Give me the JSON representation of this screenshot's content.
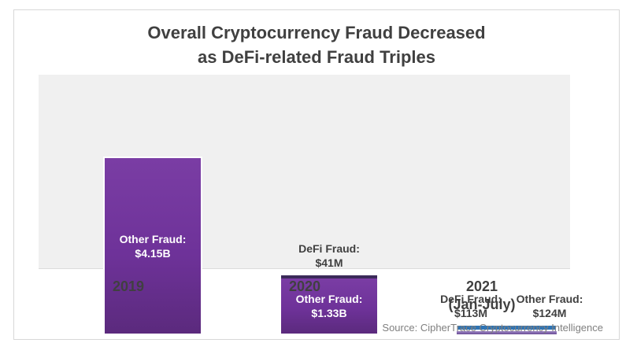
{
  "card": {
    "title_line1": "Overall Cryptocurrency Fraud Decreased",
    "title_line2": "as DeFi-related Fraud Triples",
    "source": "Source: CipherTrace Cryptocurrency Intelligence"
  },
  "chart_data": {
    "type": "bar",
    "stacked": true,
    "title": "Overall Cryptocurrency Fraud Decreased as DeFi-related Fraud Triples",
    "categories": [
      "2019",
      "2020",
      "2021 (Jan-July)"
    ],
    "unit": "USD",
    "series": [
      {
        "name": "DeFi Fraud",
        "color": "#2e74b5",
        "values_usd_millions": [
          null,
          41,
          113
        ],
        "labels": [
          null,
          "$41M",
          "$113M"
        ]
      },
      {
        "name": "Other Fraud",
        "color": "#6e3299",
        "values_usd_millions": [
          4150,
          1330,
          124
        ],
        "labels": [
          "$4.15B",
          "$1.33B",
          "$124M"
        ]
      }
    ],
    "legend_position": "none",
    "grid": false,
    "plot_background": "#f0f0f0",
    "source": "Source: CipherTrace Cryptocurrency Intelligence"
  },
  "labels": {
    "bar2019_other_l1": "Other Fraud:",
    "bar2019_other_l2": "$4.15B",
    "bar2020_defi_l1": "DeFi Fraud:",
    "bar2020_defi_l2": "$41M",
    "bar2020_other_l1": "Other Fraud:",
    "bar2020_other_l2": "$1.33B",
    "bar2021_defi_l1": "DeFi Fraud:",
    "bar2021_defi_l2": "$113M",
    "bar2021_other_l1": "Other Fraud:",
    "bar2021_other_l2": "$124M"
  },
  "axis": {
    "x_2019": "2019",
    "x_2020": "2020",
    "x_2021_line1": "2021",
    "x_2021_line2": "(Jan-July)"
  },
  "colors": {
    "bar_purple": "#6e3299",
    "defi_2020_strip": "#3b2a59",
    "defi_2021_blue": "#2e74b5",
    "other_2021_light_purple": "#7c5ca8",
    "title_text": "#404040",
    "source_text": "#7f7f7f",
    "plot_background": "#f0f0f0"
  }
}
